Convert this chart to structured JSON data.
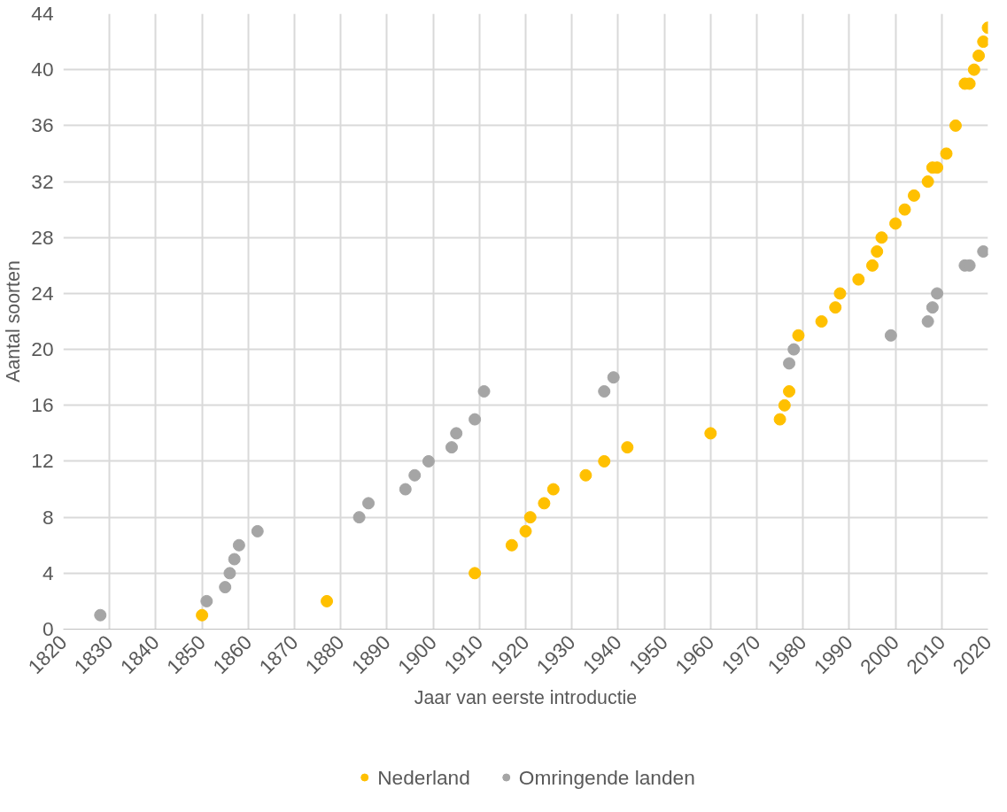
{
  "chart_data": {
    "type": "scatter",
    "xlabel": "Jaar van eerste introductie",
    "ylabel": "Aantal soorten",
    "xlim": [
      1820,
      2020
    ],
    "xticks": [
      1820,
      1830,
      1840,
      1850,
      1860,
      1870,
      1880,
      1890,
      1900,
      1910,
      1920,
      1930,
      1940,
      1950,
      1960,
      1970,
      1980,
      1990,
      2000,
      2010,
      2020
    ],
    "ylim": [
      0,
      44
    ],
    "yticks": [
      0,
      4,
      8,
      12,
      16,
      20,
      24,
      28,
      32,
      36,
      40,
      44
    ],
    "grid": true,
    "legend": "bottom",
    "marker": "circle",
    "series": [
      {
        "name": "Nederland",
        "color": "#ffc000",
        "x": [
          1850,
          1877,
          1909,
          1917,
          1920,
          1921,
          1924,
          1926,
          1933,
          1937,
          1942,
          1960,
          1975,
          1976,
          1977,
          1979,
          1984,
          1987,
          1988,
          1992,
          1995,
          1996,
          1997,
          2000,
          2002,
          2004,
          2007,
          2008,
          2009,
          2011,
          2013,
          2015,
          2016,
          2017,
          2018,
          2019,
          2020
        ],
        "values": [
          1,
          2,
          4,
          6,
          7,
          8,
          9,
          10,
          11,
          12,
          13,
          14,
          15,
          16,
          17,
          21,
          22,
          23,
          24,
          25,
          26,
          27,
          28,
          29,
          30,
          31,
          32,
          33,
          33,
          34,
          36,
          39,
          39,
          40,
          41,
          42,
          43
        ]
      },
      {
        "name": "Omringende landen",
        "color": "#a5a5a5",
        "x": [
          1828,
          1851,
          1855,
          1856,
          1857,
          1858,
          1862,
          1884,
          1886,
          1894,
          1896,
          1899,
          1904,
          1905,
          1909,
          1911,
          1937,
          1939,
          1977,
          1978,
          1999,
          2007,
          2008,
          2009,
          2015,
          2016,
          2019
        ],
        "values": [
          1,
          2,
          3,
          4,
          5,
          6,
          7,
          8,
          9,
          10,
          11,
          12,
          13,
          14,
          15,
          17,
          17,
          18,
          19,
          20,
          21,
          22,
          23,
          24,
          26,
          26,
          27
        ]
      }
    ]
  }
}
